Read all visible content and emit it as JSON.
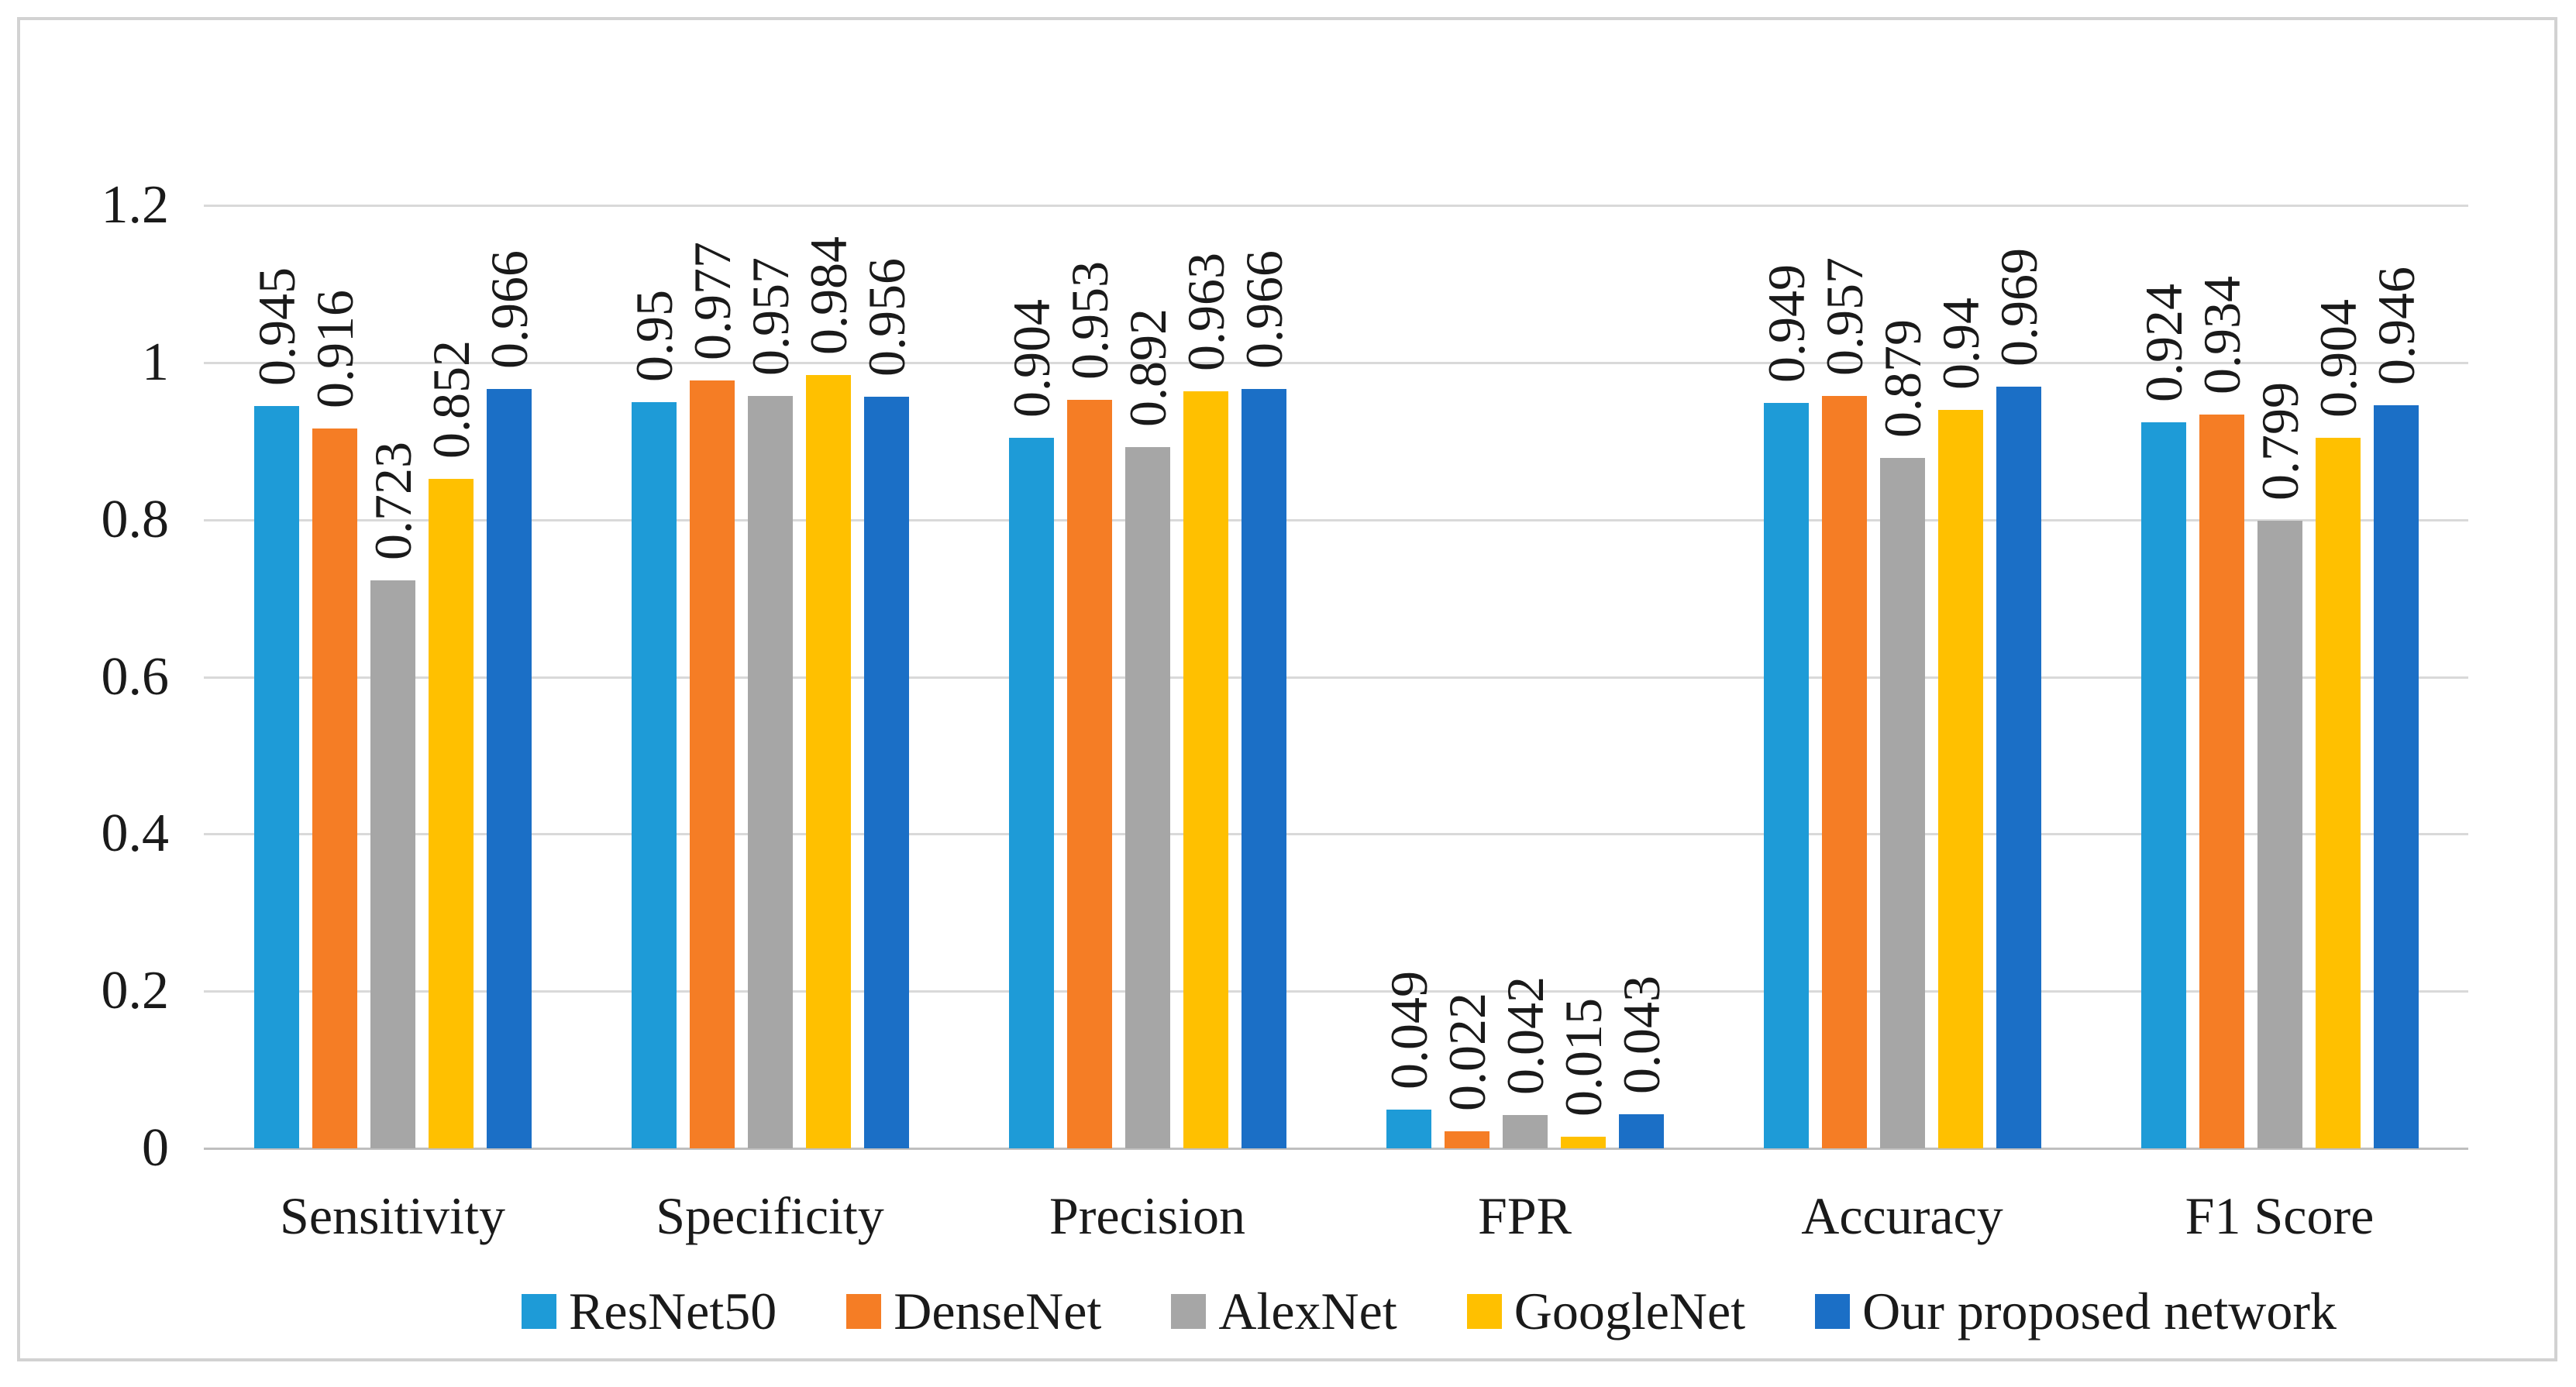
{
  "figure": {
    "background_color": "#ffffff",
    "frame_border_color": "#d2d2d2",
    "text_color": "#1a1a1a"
  },
  "chart_data": {
    "type": "bar",
    "title": "",
    "categories": [
      "Sensitivity",
      "Specificity",
      "Precision",
      "FPR",
      "Accuracy",
      "F1 Score"
    ],
    "series": [
      {
        "name": "ResNet50",
        "color": "#1E9BD7",
        "values": [
          0.945,
          0.95,
          0.904,
          0.049,
          0.949,
          0.924
        ]
      },
      {
        "name": "DenseNet",
        "color": "#F57D25",
        "values": [
          0.916,
          0.977,
          0.953,
          0.022,
          0.957,
          0.934
        ]
      },
      {
        "name": "AlexNet",
        "color": "#A6A6A6",
        "values": [
          0.723,
          0.957,
          0.892,
          0.042,
          0.879,
          0.799
        ]
      },
      {
        "name": "GoogleNet",
        "color": "#FFC000",
        "values": [
          0.852,
          0.984,
          0.963,
          0.015,
          0.94,
          0.904
        ]
      },
      {
        "name": "Our proposed network",
        "color": "#1B6FC6",
        "values": [
          0.966,
          0.956,
          0.966,
          0.043,
          0.969,
          0.946
        ]
      }
    ],
    "value_labels": [
      [
        "0.945",
        "0.95",
        "0.904",
        "0.049",
        "0.949",
        "0.924"
      ],
      [
        "0.916",
        "0.977",
        "0.953",
        "0.022",
        "0.957",
        "0.934"
      ],
      [
        "0.723",
        "0.957",
        "0.892",
        "0.042",
        "0.879",
        "0.799"
      ],
      [
        "0.852",
        "0.984",
        "0.963",
        "0.015",
        "0.94",
        "0.904"
      ],
      [
        "0.966",
        "0.956",
        "0.966",
        "0.043",
        "0.969",
        "0.946"
      ]
    ],
    "value_label_style": "rotated-90-ccw-above-bar",
    "xlabel": "",
    "ylabel": "",
    "y_axis": {
      "min": 0,
      "max": 1.2,
      "step": 0.2,
      "tick_labels": [
        "0",
        "0.2",
        "0.4",
        "0.6",
        "0.8",
        "1",
        "1.2"
      ]
    },
    "grid": true,
    "gridline_color": "#d9d9d9",
    "axis_line_color": "#bfbfbf",
    "legend_position": "bottom",
    "legend_entries": [
      "ResNet50",
      "DenseNet",
      "AlexNet",
      "GoogleNet",
      "Our proposed network"
    ]
  }
}
